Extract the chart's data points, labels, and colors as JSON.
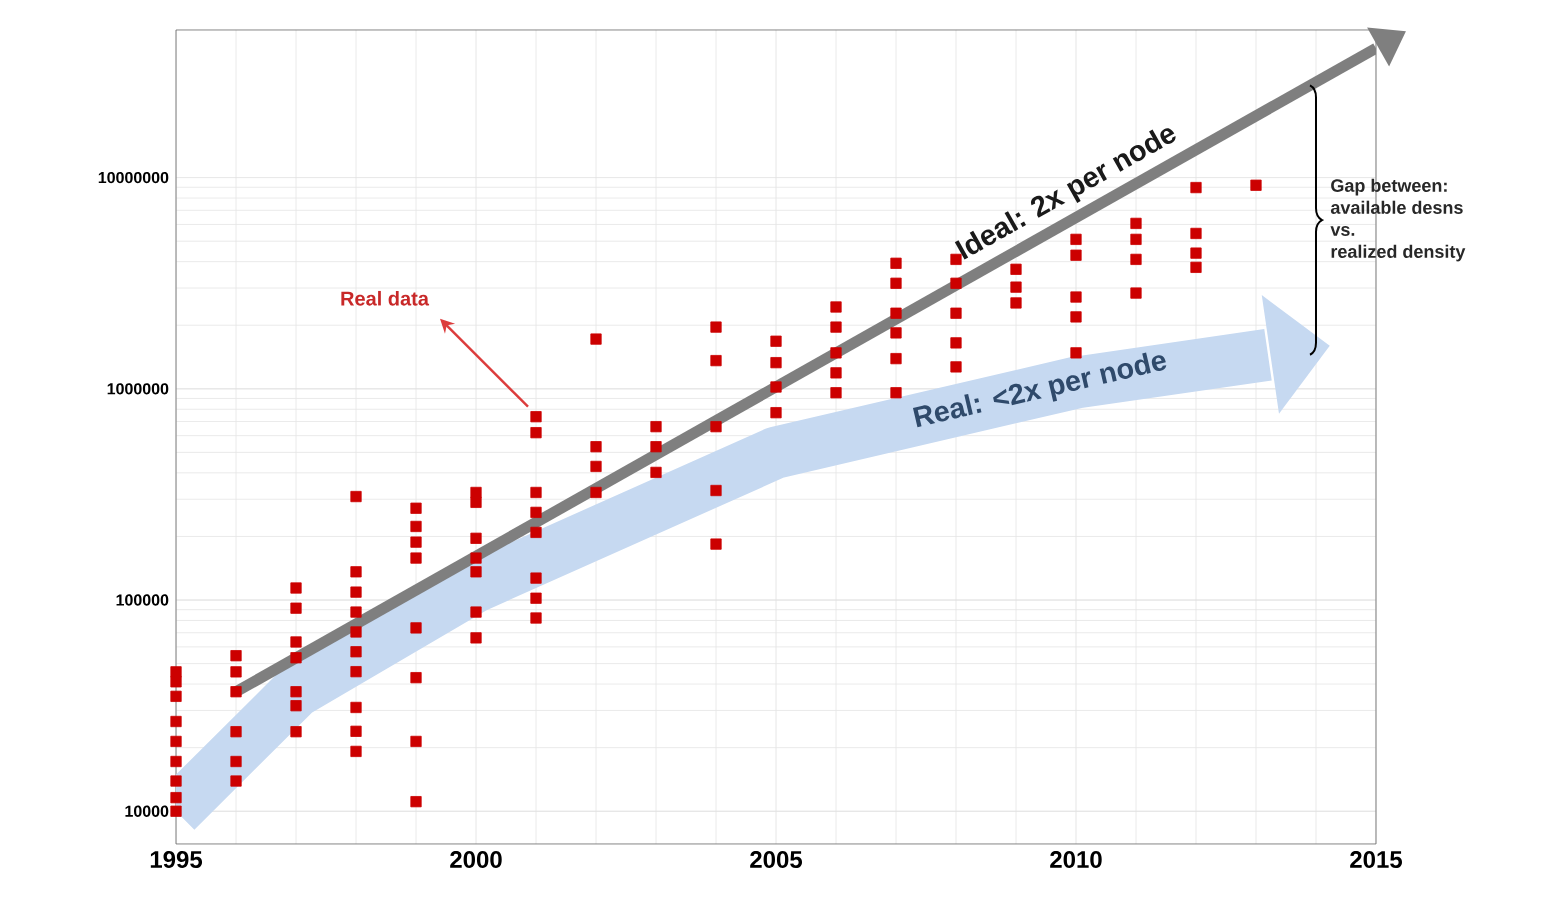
{
  "chart_data": {
    "type": "scatter",
    "xlim": [
      1995,
      2015
    ],
    "xticks": [
      1995,
      2000,
      2005,
      2010,
      2015
    ],
    "ylim": [
      7000,
      50000000
    ],
    "yticks": [
      10000,
      100000,
      1000000,
      10000000
    ],
    "log": "y",
    "grid": true,
    "marker": "square",
    "series": [
      {
        "name": "Real: <2x per node",
        "type": "line",
        "marker": "none",
        "color": "#c6d9f1",
        "x": [
          1995,
          1997,
          2000,
          2005,
          2010,
          2013.2
        ],
        "values": [
          10000,
          36800,
          116000,
          499000,
          1070000,
          1450000
        ]
      },
      {
        "color": "#cc0000",
        "x": [
          1995,
          1995,
          1995,
          1995,
          1995,
          1995,
          1995,
          1995,
          1995,
          1996,
          1996,
          1996,
          1996,
          1996,
          1996,
          1997,
          1997,
          1997,
          1997,
          1997,
          1997,
          1997,
          1998,
          1998,
          1998,
          1998,
          1998,
          1998,
          1998,
          1998,
          1998,
          1998,
          1999,
          1999,
          1999,
          1999,
          1999,
          1999,
          1999,
          1999,
          2000,
          2000,
          2000,
          2000,
          2000,
          2000,
          2000,
          2001,
          2001,
          2001,
          2001,
          2001,
          2001,
          2001,
          2001,
          2002,
          2002,
          2002,
          2002,
          2003,
          2003,
          2003,
          2004,
          2004,
          2004,
          2004,
          2004,
          2005,
          2005,
          2005,
          2005,
          2006,
          2006,
          2006,
          2006,
          2006,
          2007,
          2007,
          2007,
          2007,
          2007,
          2007,
          2008,
          2008,
          2008,
          2008,
          2008,
          2009,
          2009,
          2009,
          2010,
          2010,
          2010,
          2010,
          2010,
          2011,
          2011,
          2011,
          2011,
          2012,
          2012,
          2012,
          2012,
          2013
        ],
        "values": [
          45700,
          41000,
          35000,
          26600,
          21400,
          17200,
          13900,
          11600,
          10000,
          54500,
          45700,
          36800,
          23800,
          17200,
          13900,
          114000,
          91500,
          63300,
          53300,
          36800,
          31600,
          23800,
          309000,
          136000,
          109000,
          87700,
          70600,
          56900,
          45800,
          31000,
          23900,
          19200,
          272000,
          223000,
          188000,
          158000,
          73800,
          42900,
          21400,
          11100,
          323000,
          290000,
          196000,
          158000,
          136000,
          87700,
          66200,
          738000,
          620000,
          323000,
          260000,
          209000,
          127000,
          102000,
          82200,
          1720000,
          532000,
          429000,
          323000,
          662000,
          532000,
          402000,
          1960000,
          1360000,
          662000,
          330000,
          184000,
          1680000,
          1330000,
          1020000,
          771000,
          2440000,
          1960000,
          1480000,
          1190000,
          958000,
          3930000,
          3160000,
          2280000,
          1840000,
          1390000,
          958000,
          4100000,
          3160000,
          2280000,
          1650000,
          1270000,
          3680000,
          3030000,
          2550000,
          5100000,
          4290000,
          2720000,
          2190000,
          1480000,
          6070000,
          5100000,
          4100000,
          2840000,
          8970000,
          5440000,
          4390000,
          3760000,
          9200000
        ]
      },
      {
        "name": "Ideal: 2x per node",
        "type": "line",
        "marker": "none",
        "color": "#7f7f7f",
        "x": [
          1996,
          2015
        ],
        "values": [
          36800,
          41000000
        ]
      }
    ],
    "annotations": [
      {
        "text": "Real data",
        "x": 2001,
        "y": 738000
      },
      "Gap between:",
      "available desns",
      "vs.",
      "realized density"
    ]
  }
}
